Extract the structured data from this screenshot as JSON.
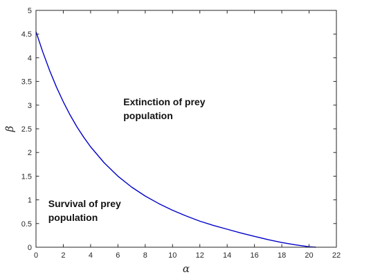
{
  "chart_data": {
    "type": "line",
    "title": "",
    "xlabel": "α",
    "ylabel": "β",
    "xlim": [
      0,
      22
    ],
    "ylim": [
      0,
      5
    ],
    "xticks": [
      0,
      2,
      4,
      6,
      8,
      10,
      12,
      14,
      16,
      18,
      20,
      22
    ],
    "yticks": [
      0,
      0.5,
      1,
      1.5,
      2,
      2.5,
      3,
      3.5,
      4,
      4.5,
      5
    ],
    "xtick_labels": [
      "0",
      "2",
      "4",
      "6",
      "8",
      "10",
      "12",
      "14",
      "16",
      "18",
      "20",
      "22"
    ],
    "ytick_labels": [
      "0",
      "0.5",
      "1",
      "1.5",
      "2",
      "2.5",
      "3",
      "3.5",
      "4",
      "4.5",
      "5"
    ],
    "grid": false,
    "series": [
      {
        "color": "#0000c8",
        "x": [
          0,
          0.5,
          1,
          1.5,
          2,
          2.5,
          3,
          3.5,
          4,
          5,
          6,
          7,
          8,
          9,
          10,
          11,
          12,
          13,
          14,
          15,
          16,
          17,
          18,
          19,
          20,
          20.5
        ],
        "y": [
          4.55,
          4.12,
          3.73,
          3.38,
          3.07,
          2.79,
          2.54,
          2.32,
          2.12,
          1.78,
          1.5,
          1.27,
          1.08,
          0.92,
          0.78,
          0.66,
          0.55,
          0.46,
          0.38,
          0.3,
          0.23,
          0.16,
          0.1,
          0.05,
          0.01,
          0
        ]
      }
    ],
    "annotations": [
      {
        "lines": [
          "Extinction of prey",
          "population"
        ],
        "x": 6.4,
        "y": 3.0
      },
      {
        "lines": [
          "Survival of prey",
          "population"
        ],
        "x": 0.9,
        "y": 0.85
      }
    ]
  }
}
